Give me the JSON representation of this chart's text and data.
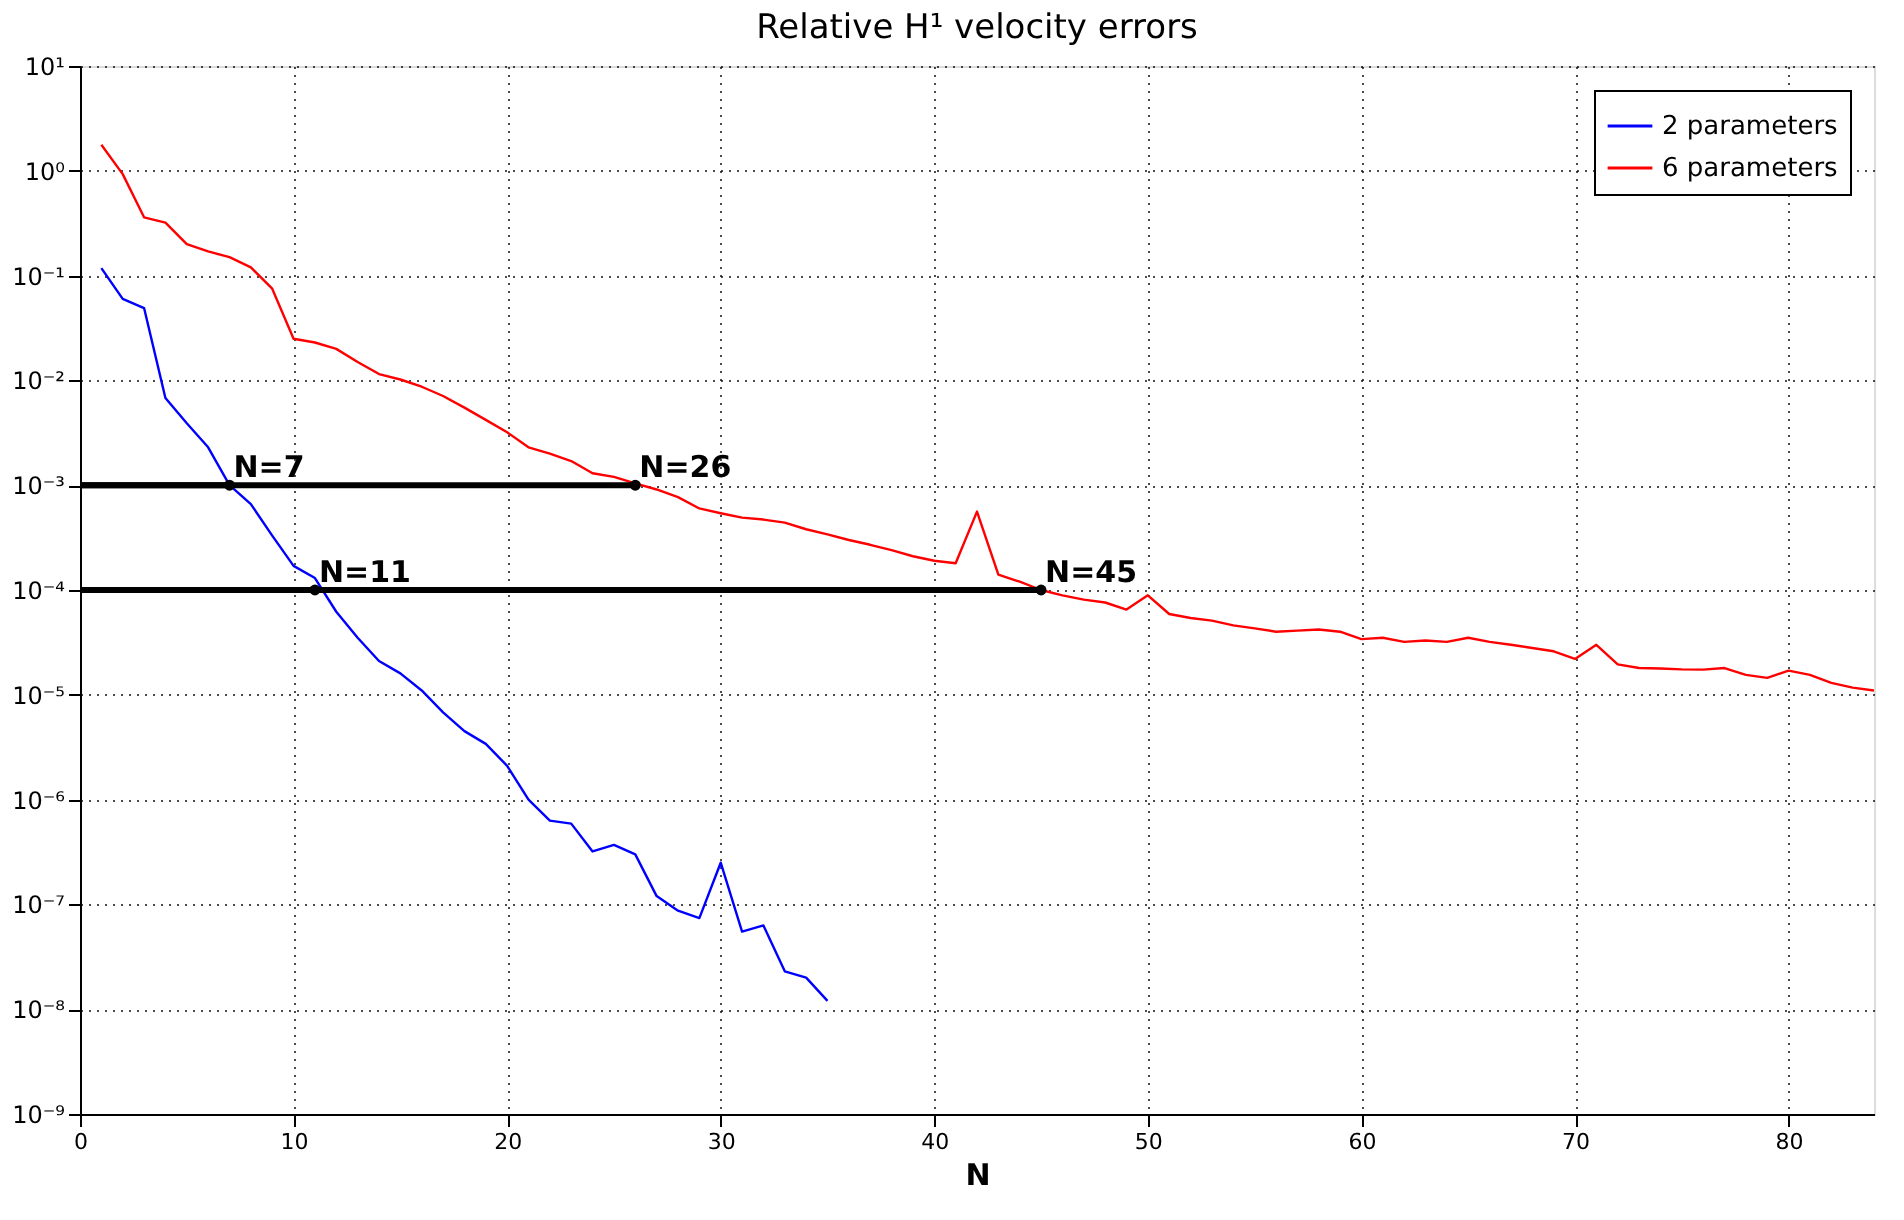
{
  "chart_data": {
    "type": "line",
    "title": "Relative H¹ velocity errors",
    "xlabel": "N",
    "log": "y",
    "grid": true,
    "legend": "top right",
    "marker": "none",
    "line_style": "solid",
    "xlim": [
      0,
      84
    ],
    "xticks": [
      0,
      10,
      20,
      30,
      40,
      50,
      60,
      70,
      80
    ],
    "ylim": [
      1e-09,
      10
    ],
    "yticks": [
      {
        "value": 10,
        "label": "10¹"
      },
      {
        "value": 1,
        "label": "10⁰"
      },
      {
        "value": 0.1,
        "label": "10⁻¹"
      },
      {
        "value": 0.01,
        "label": "10⁻²"
      },
      {
        "value": 0.001,
        "label": "10⁻³"
      },
      {
        "value": 0.0001,
        "label": "10⁻⁴"
      },
      {
        "value": 1e-05,
        "label": "10⁻⁵"
      },
      {
        "value": 1e-06,
        "label": "10⁻⁶"
      },
      {
        "value": 1e-07,
        "label": "10⁻⁷"
      },
      {
        "value": 1e-08,
        "label": "10⁻⁸"
      },
      {
        "value": 1e-09,
        "label": "10⁻⁹"
      }
    ],
    "series": [
      {
        "name": "2 parameters",
        "color": "#0000ff",
        "x": [
          1,
          2,
          3,
          4,
          5,
          6,
          7,
          8,
          9,
          10,
          11,
          12,
          13,
          14,
          15,
          16,
          17,
          18,
          19,
          20,
          21,
          22,
          23,
          24,
          25,
          26,
          27,
          28,
          29,
          30,
          31,
          32,
          33,
          34,
          35
        ],
        "values": [
          0.118,
          0.06,
          0.049,
          0.0068,
          0.0039,
          0.0023,
          0.001,
          0.00066,
          0.00033,
          0.00017,
          0.00013,
          6.2e-05,
          3.5e-05,
          2.1e-05,
          1.6e-05,
          1.1e-05,
          6.8e-06,
          4.5e-06,
          3.4e-06,
          2.1e-06,
          1e-06,
          6.3e-07,
          5.9e-07,
          3.2e-07,
          3.7e-07,
          3e-07,
          1.2e-07,
          8.7e-08,
          7.4e-08,
          2.5e-07,
          5.5e-08,
          6.3e-08,
          2.3e-08,
          2e-08,
          1.2e-08
        ]
      },
      {
        "name": "6 parameters",
        "color": "#ff0000",
        "x": [
          1,
          2,
          3,
          4,
          5,
          6,
          7,
          8,
          9,
          10,
          11,
          12,
          13,
          14,
          15,
          16,
          17,
          18,
          19,
          20,
          21,
          22,
          23,
          24,
          25,
          26,
          27,
          28,
          29,
          30,
          31,
          32,
          33,
          34,
          35,
          36,
          37,
          38,
          39,
          40,
          41,
          42,
          43,
          44,
          45,
          46,
          47,
          48,
          49,
          50,
          51,
          52,
          53,
          54,
          55,
          56,
          57,
          58,
          59,
          60,
          61,
          62,
          63,
          64,
          65,
          66,
          67,
          68,
          69,
          70,
          71,
          72,
          73,
          74,
          75,
          76,
          77,
          78,
          79,
          80,
          81,
          82,
          83,
          84
        ],
        "values": [
          1.77,
          0.93,
          0.36,
          0.32,
          0.2,
          0.17,
          0.15,
          0.12,
          0.075,
          0.025,
          0.023,
          0.02,
          0.015,
          0.0115,
          0.0102,
          0.0087,
          0.0071,
          0.0055,
          0.0042,
          0.0032,
          0.0023,
          0.002,
          0.0017,
          0.0013,
          0.0012,
          0.00104,
          0.00091,
          0.00077,
          0.0006,
          0.00054,
          0.00049,
          0.00047,
          0.00044,
          0.00038,
          0.00034,
          0.0003,
          0.00027,
          0.00024,
          0.00021,
          0.00019,
          0.00018,
          0.00056,
          0.00014,
          0.00012,
          0.0001,
          8.9e-05,
          8.1e-05,
          7.6e-05,
          6.5e-05,
          8.9e-05,
          5.9e-05,
          5.4e-05,
          5.1e-05,
          4.6e-05,
          4.3e-05,
          4e-05,
          4.1e-05,
          4.2e-05,
          4e-05,
          3.4e-05,
          3.5e-05,
          3.2e-05,
          3.3e-05,
          3.2e-05,
          3.5e-05,
          3.2e-05,
          3e-05,
          2.8e-05,
          2.6e-05,
          2.2e-05,
          3e-05,
          1.95e-05,
          1.8e-05,
          1.78e-05,
          1.75e-05,
          1.74e-05,
          1.8e-05,
          1.55e-05,
          1.45e-05,
          1.7e-05,
          1.55e-05,
          1.3e-05,
          1.17e-05,
          1.1e-05
        ]
      }
    ],
    "annotations": [
      {
        "text": "N=7",
        "x": 7,
        "y": 0.001
      },
      {
        "text": "N=26",
        "x": 26,
        "y": 0.001
      },
      {
        "text": "N=11",
        "x": 11,
        "y": 0.0001
      },
      {
        "text": "N=45",
        "x": 45,
        "y": 0.0001
      }
    ]
  }
}
